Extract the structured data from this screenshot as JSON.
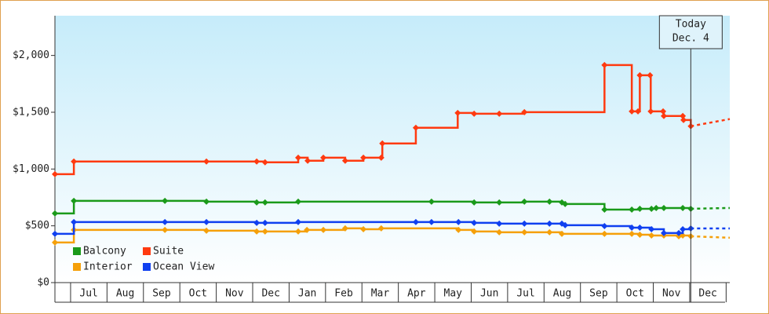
{
  "chart_data": {
    "type": "line",
    "step": true,
    "xlim": [
      -0.43,
      18.1
    ],
    "ylim": [
      0,
      2350
    ],
    "xticks": [
      {
        "value": 0.5,
        "label": "Jul"
      },
      {
        "value": 1.5,
        "label": "Aug"
      },
      {
        "value": 2.5,
        "label": "Sep"
      },
      {
        "value": 3.5,
        "label": "Oct"
      },
      {
        "value": 4.5,
        "label": "Nov"
      },
      {
        "value": 5.5,
        "label": "Dec"
      },
      {
        "value": 6.5,
        "label": "Jan"
      },
      {
        "value": 7.5,
        "label": "Feb"
      },
      {
        "value": 8.5,
        "label": "Mar"
      },
      {
        "value": 9.5,
        "label": "Apr"
      },
      {
        "value": 10.5,
        "label": "May"
      },
      {
        "value": 11.5,
        "label": "Jun"
      },
      {
        "value": 12.5,
        "label": "Jul"
      },
      {
        "value": 13.5,
        "label": "Aug"
      },
      {
        "value": 14.5,
        "label": "Sep"
      },
      {
        "value": 15.5,
        "label": "Oct"
      },
      {
        "value": 16.5,
        "label": "Nov"
      },
      {
        "value": 17.5,
        "label": "Dec"
      }
    ],
    "yticks": [
      {
        "value": 0,
        "label": "$0"
      },
      {
        "value": 500,
        "label": "$500"
      },
      {
        "value": 1000,
        "label": "$1,000"
      },
      {
        "value": 1500,
        "label": "$1,500"
      },
      {
        "value": 2000,
        "label": "$2,000"
      }
    ],
    "today": {
      "x": 17.03,
      "lines": [
        "Today",
        "Dec. 4"
      ]
    },
    "series": [
      {
        "name": "Balcony",
        "color": "#1a9a1a",
        "x": [
          -0.43,
          0.09,
          2.59,
          3.73,
          5.11,
          5.34,
          6.25,
          9.91,
          11.08,
          11.77,
          12.46,
          13.15,
          13.49,
          13.58,
          14.66,
          15.41,
          15.63,
          15.95,
          16.08,
          16.29,
          16.81,
          17.03
        ],
        "values": [
          609,
          720,
          720,
          713,
          706,
          706,
          713,
          713,
          706,
          706,
          713,
          713,
          706,
          692,
          643,
          643,
          650,
          650,
          657,
          657,
          657,
          650
        ],
        "forecast": {
          "x": [
            17.03,
            18.1
          ],
          "values": [
            650,
            657
          ]
        }
      },
      {
        "name": "Suite",
        "color": "#ff3a10",
        "x": [
          -0.43,
          0.09,
          3.73,
          5.11,
          5.34,
          6.25,
          6.51,
          6.94,
          7.54,
          8.04,
          8.53,
          8.56,
          9.48,
          10.63,
          11.08,
          11.77,
          12.46,
          14.66,
          15.41,
          15.58,
          15.63,
          15.91,
          15.93,
          16.27,
          16.29,
          16.81,
          16.83,
          17.03
        ],
        "values": [
          955,
          1066,
          1066,
          1066,
          1059,
          1100,
          1073,
          1100,
          1073,
          1100,
          1100,
          1225,
          1363,
          1494,
          1487,
          1487,
          1501,
          1915,
          1508,
          1508,
          1826,
          1826,
          1508,
          1508,
          1467,
          1467,
          1432,
          1377
        ],
        "forecast": {
          "x": [
            17.03,
            18.1
          ],
          "values": [
            1377,
            1440
          ]
        }
      },
      {
        "name": "Interior",
        "color": "#f5a00a",
        "x": [
          -0.43,
          0.09,
          2.59,
          3.73,
          5.11,
          5.34,
          6.25,
          6.49,
          6.94,
          7.54,
          8.04,
          8.53,
          10.65,
          11.08,
          11.77,
          12.46,
          13.15,
          13.49,
          14.66,
          15.41,
          15.63,
          15.95,
          16.29,
          16.7,
          16.81,
          17.03
        ],
        "values": [
          353,
          464,
          464,
          457,
          450,
          450,
          450,
          464,
          464,
          478,
          470,
          478,
          464,
          450,
          443,
          443,
          443,
          429,
          429,
          429,
          422,
          415,
          415,
          408,
          415,
          408
        ],
        "forecast": {
          "x": [
            17.03,
            18.1
          ],
          "values": [
            408,
            395
          ]
        }
      },
      {
        "name": "Ocean View",
        "color": "#1040f0",
        "x": [
          -0.43,
          0.09,
          2.59,
          3.73,
          5.11,
          5.34,
          6.25,
          9.48,
          9.91,
          10.65,
          11.08,
          11.77,
          12.46,
          13.15,
          13.49,
          13.58,
          14.66,
          15.41,
          15.63,
          15.95,
          16.29,
          16.7,
          16.81,
          17.03
        ],
        "values": [
          429,
          533,
          533,
          533,
          526,
          526,
          533,
          533,
          533,
          533,
          526,
          519,
          519,
          519,
          519,
          505,
          498,
          484,
          484,
          470,
          436,
          436,
          470,
          477
        ],
        "forecast": {
          "x": [
            17.03,
            18.1
          ],
          "values": [
            477,
            477
          ]
        }
      }
    ]
  }
}
